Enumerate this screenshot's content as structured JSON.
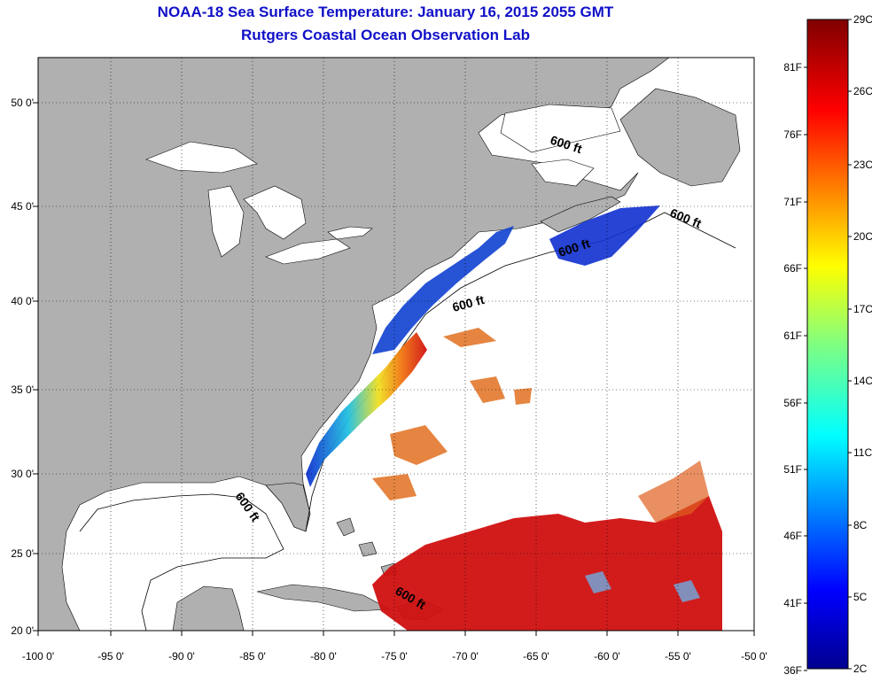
{
  "title": {
    "line1": "NOAA-18 Sea Surface Temperature:  January 16, 2015 2055 GMT",
    "line2": "Rutgers Coastal Ocean Observation Lab"
  },
  "colors": {
    "title": "#1010c8",
    "land": "#b0b0b0",
    "ocean_nodata": "#ffffff",
    "warm": "#d01010",
    "cold": "#1030d0"
  },
  "axes": {
    "lon_labels": [
      "-100 0'",
      "-95 0'",
      "-90 0'",
      "-85 0'",
      "-80 0'",
      "-75 0'",
      "-70 0'",
      "-65 0'",
      "-60 0'",
      "-55 0'",
      "-50 0'"
    ],
    "lat_labels": [
      "50 0'",
      "45 0'",
      "40 0'",
      "35 0'",
      "30 0'",
      "25 0'",
      "20 0'"
    ],
    "grid": "dotted"
  },
  "contour": {
    "label": "600 ft"
  },
  "colorbar": {
    "celsius": [
      "29C",
      "26C",
      "23C",
      "20C",
      "17C",
      "14C",
      "11C",
      "8C",
      "5C",
      "2C"
    ],
    "fahrenheit": [
      "81F",
      "76F",
      "71F",
      "66F",
      "61F",
      "56F",
      "51F",
      "46F",
      "41F",
      "36F"
    ],
    "range_c": [
      2,
      29
    ]
  }
}
